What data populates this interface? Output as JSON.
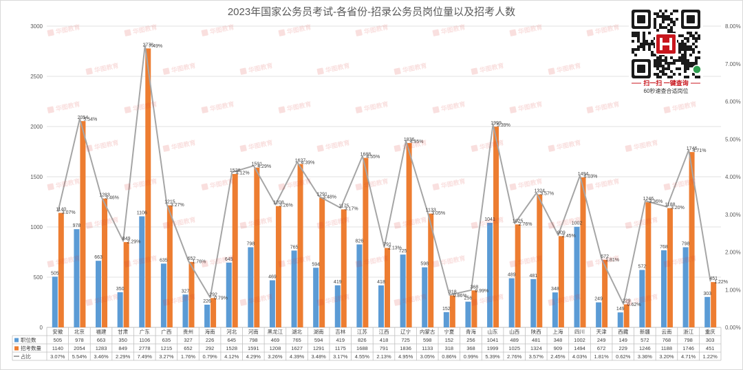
{
  "chart_data": {
    "type": "bar",
    "title": "2023年国家公务员考试-各省份-招录公务员岗位量以及招考人数",
    "categories": [
      "安徽",
      "北京",
      "福建",
      "甘肃",
      "广东",
      "广西",
      "贵州",
      "海南",
      "河北",
      "河南",
      "黑龙江",
      "湖北",
      "湖南",
      "吉林",
      "江苏",
      "江西",
      "辽宁",
      "内蒙古",
      "宁夏",
      "青海",
      "山东",
      "山西",
      "陕西",
      "上海",
      "四川",
      "天津",
      "西藏",
      "新疆",
      "云南",
      "浙江",
      "重庆"
    ],
    "series": [
      {
        "name": "职位数",
        "type": "bar",
        "axis": "left",
        "color": "#5b9bd5",
        "values": [
          505,
          978,
          663,
          350,
          1106,
          635,
          327,
          226,
          645,
          798,
          469,
          765,
          594,
          419,
          826,
          418,
          725,
          598,
          152,
          256,
          1041,
          489,
          481,
          348,
          1002,
          249,
          149,
          572,
          768,
          798,
          303
        ]
      },
      {
        "name": "招考数量",
        "type": "bar",
        "axis": "left",
        "color": "#ed7d31",
        "values": [
          1140,
          2054,
          1283,
          849,
          2778,
          1215,
          652,
          292,
          1528,
          1591,
          1208,
          1627,
          1291,
          1175,
          1688,
          791,
          1836,
          1133,
          318,
          368,
          1999,
          1025,
          1324,
          909,
          1494,
          672,
          229,
          1246,
          1188,
          1746,
          451
        ]
      },
      {
        "name": "占比",
        "type": "line",
        "axis": "right",
        "unit": "%",
        "color": "#a5a5a5",
        "values": [
          3.07,
          5.54,
          3.46,
          2.29,
          7.49,
          3.27,
          1.76,
          0.79,
          4.12,
          4.29,
          3.26,
          4.39,
          3.48,
          3.17,
          4.55,
          2.13,
          4.95,
          3.05,
          0.86,
          0.99,
          5.39,
          2.76,
          3.57,
          2.45,
          4.03,
          1.81,
          0.62,
          3.36,
          3.2,
          4.71,
          1.22
        ]
      }
    ],
    "y_left": {
      "range": [
        0,
        3000
      ],
      "tick_labels": [
        "0",
        "500",
        "1000",
        "1500",
        "2000",
        "2500",
        "3000"
      ]
    },
    "y_right": {
      "range": [
        0,
        8
      ],
      "unit": "%",
      "tick_labels": [
        "0.00%",
        "1.00%",
        "2.00%",
        "3.00%",
        "4.00%",
        "5.00%",
        "6.00%",
        "7.00%",
        "8.00%"
      ]
    },
    "grid": true,
    "legend": "data-table-below",
    "data_labels": true
  },
  "qr_panel": {
    "caption": "扫一扫 一键查询",
    "subcaption": "60秒速查合适岗位"
  },
  "watermark_text": "华图教育"
}
